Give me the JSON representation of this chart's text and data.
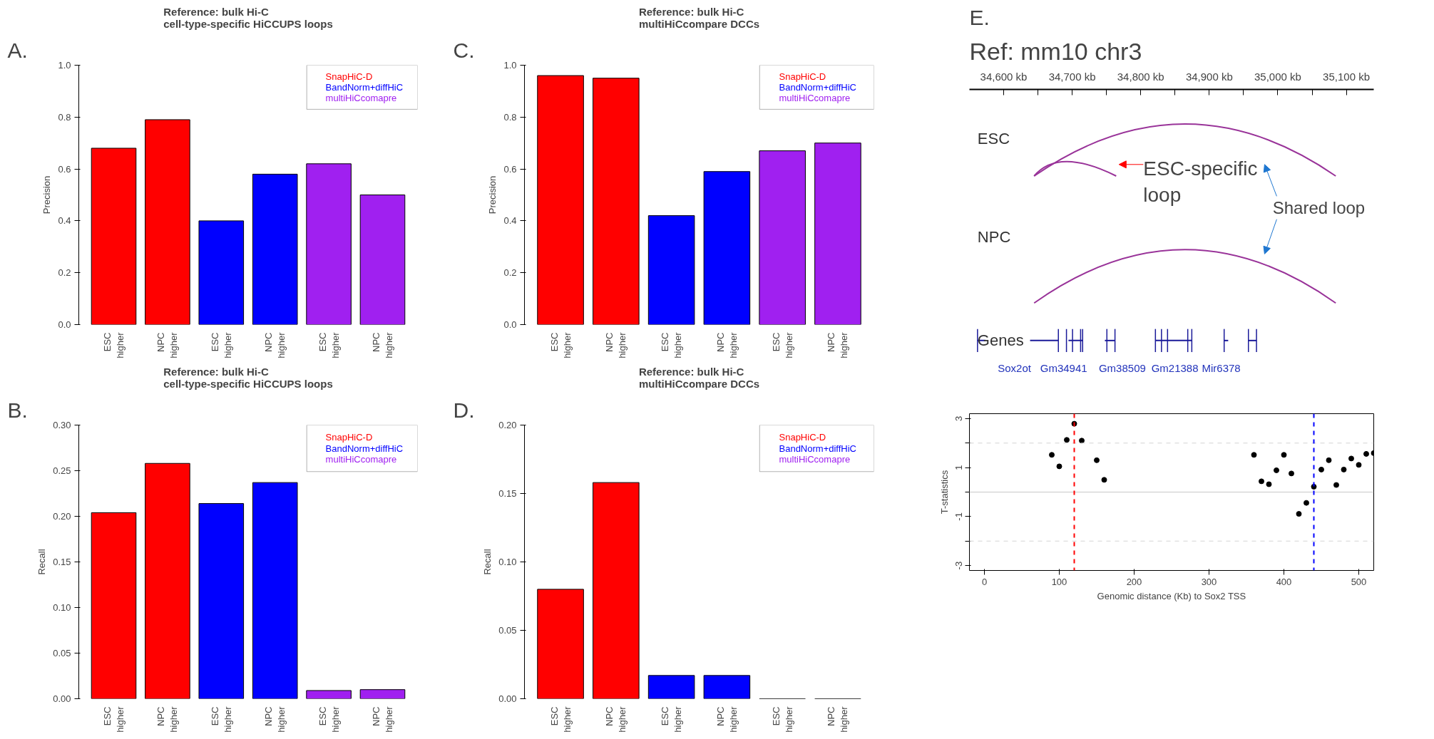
{
  "chart_data": [
    {
      "type": "bar",
      "title": "Reference: bulk Hi-C\ncell-type-specific HiCCUPS loops",
      "ylabel": "Precision",
      "annotations": [
        "A."
      ],
      "categories": [
        "ESC\nhigher",
        "NPC\nhigher",
        "ESC\nhigher",
        "NPC\nhigher",
        "ESC\nhigher",
        "NPC\nhigher"
      ],
      "series": [
        {
          "name": "SnapHiC-D",
          "color": "#ff0000",
          "values": [
            0.68,
            0.79,
            null,
            null,
            null,
            null
          ]
        },
        {
          "name": "BandNorm+diffHiC",
          "color": "#0000ff",
          "values": [
            null,
            null,
            0.4,
            0.58,
            null,
            null
          ]
        },
        {
          "name": "multiHiCcomapre",
          "color": "#a020f0",
          "values": [
            null,
            null,
            null,
            null,
            0.62,
            0.5
          ]
        }
      ],
      "ylim": [
        0,
        1.0
      ],
      "yticks": [
        {
          "value": 0,
          "label": "0.0"
        },
        0.2,
        0.4,
        0.6,
        0.8,
        {
          "value": 1,
          "label": "1.0"
        }
      ],
      "legend": "top right"
    },
    {
      "type": "bar",
      "title": "Reference: bulk Hi-C\ncell-type-specific HiCCUPS loops",
      "ylabel": "Recall",
      "annotations": [
        "B."
      ],
      "categories": [
        "ESC\nhigher",
        "NPC\nhigher",
        "ESC\nhigher",
        "NPC\nhigher",
        "ESC\nhigher",
        "NPC\nhigher"
      ],
      "series": [
        {
          "name": "SnapHiC-D",
          "color": "#ff0000",
          "values": [
            0.204,
            0.258,
            null,
            null,
            null,
            null
          ]
        },
        {
          "name": "BandNorm+diffHiC",
          "color": "#0000ff",
          "values": [
            null,
            null,
            0.214,
            0.237,
            null,
            null
          ]
        },
        {
          "name": "multiHiCcomapre",
          "color": "#a020f0",
          "values": [
            null,
            null,
            null,
            null,
            0.009,
            0.01
          ]
        }
      ],
      "ylim": [
        0,
        0.3
      ],
      "yticks": [
        {
          "value": 0.0,
          "label": "0.00"
        },
        {
          "value": 0.05,
          "label": "0.05"
        },
        {
          "value": 0.1,
          "label": "0.10"
        },
        {
          "value": 0.15,
          "label": "0.15"
        },
        {
          "value": 0.2,
          "label": "0.20"
        },
        {
          "value": 0.25,
          "label": "0.25"
        },
        {
          "value": 0.3,
          "label": "0.30"
        }
      ],
      "legend": "top right"
    },
    {
      "type": "bar",
      "title": "Reference: bulk Hi-C\nmultiHiCcompare DCCs",
      "ylabel": "Precision",
      "annotations": [
        "C."
      ],
      "categories": [
        "ESC\nhigher",
        "NPC\nhigher",
        "ESC\nhigher",
        "NPC\nhigher",
        "ESC\nhigher",
        "NPC\nhigher"
      ],
      "series": [
        {
          "name": "SnapHiC-D",
          "color": "#ff0000",
          "values": [
            0.96,
            0.95,
            null,
            null,
            null,
            null
          ]
        },
        {
          "name": "BandNorm+diffHiC",
          "color": "#0000ff",
          "values": [
            null,
            null,
            0.42,
            0.59,
            null,
            null
          ]
        },
        {
          "name": "multiHiCcomapre",
          "color": "#a020f0",
          "values": [
            null,
            null,
            null,
            null,
            0.67,
            0.7
          ]
        }
      ],
      "ylim": [
        0,
        1.0
      ],
      "yticks": [
        {
          "value": 0,
          "label": "0.0"
        },
        0.2,
        0.4,
        0.6,
        0.8,
        {
          "value": 1,
          "label": "1.0"
        }
      ],
      "legend": "top right"
    },
    {
      "type": "bar",
      "title": "Reference: bulk Hi-C\nmultiHiCcompare DCCs",
      "ylabel": "Recall",
      "annotations": [
        "D."
      ],
      "categories": [
        "ESC\nhigher",
        "NPC\nhigher",
        "ESC\nhigher",
        "NPC\nhigher",
        "ESC\nhigher",
        "NPC\nhigher"
      ],
      "series": [
        {
          "name": "SnapHiC-D",
          "color": "#ff0000",
          "values": [
            0.08,
            0.158,
            null,
            null,
            null,
            null
          ]
        },
        {
          "name": "BandNorm+diffHiC",
          "color": "#0000ff",
          "values": [
            null,
            null,
            0.017,
            0.017,
            null,
            null
          ]
        },
        {
          "name": "multiHiCcomapre",
          "color": "#a020f0",
          "values": [
            null,
            null,
            null,
            null,
            0,
            0
          ]
        }
      ],
      "ylim": [
        0,
        0.2
      ],
      "yticks": [
        {
          "value": 0.0,
          "label": "0.00"
        },
        {
          "value": 0.05,
          "label": "0.05"
        },
        {
          "value": 0.1,
          "label": "0.10"
        },
        {
          "value": 0.15,
          "label": "0.15"
        },
        {
          "value": 0.2,
          "label": "0.20"
        }
      ],
      "legend": "top right"
    },
    {
      "type": "other",
      "title": "Ref: mm10 chr3",
      "annotations": [
        "E.",
        "ESC",
        "NPC",
        "Genes",
        "Sox2ot",
        "Gm34941",
        "Gm38509",
        "Gm21388",
        "Mir6378",
        "ESC-specific\nloop",
        "Shared loop",
        "34,600 kb",
        "34,700 kb",
        "34,800 kb",
        "34,900 kb",
        "35,000 kb",
        "35,100 kb"
      ]
    },
    {
      "type": "scatter",
      "xlabel": "Genomic distance (Kb) to Sox2 TSS",
      "ylabel": "T-statistics",
      "marker": "circle",
      "x": [
        90,
        100,
        110,
        120,
        130,
        150,
        160,
        360,
        370,
        380,
        390,
        400,
        410,
        420,
        430,
        440,
        450,
        460,
        470,
        480,
        490,
        500,
        510,
        520
      ],
      "series": [
        {
          "color": "#000000",
          "values": [
            1.52,
            1.05,
            2.13,
            2.79,
            2.1,
            1.3,
            0.5,
            1.52,
            0.44,
            0.32,
            0.89,
            1.52,
            0.76,
            -0.89,
            -0.44,
            0.22,
            0.92,
            1.3,
            0.29,
            0.92,
            1.37,
            1.11,
            1.56,
            1.59
          ]
        }
      ],
      "xlim": [
        -20,
        520
      ],
      "xticks": [
        0,
        100,
        200,
        300,
        400,
        500
      ],
      "ylim": [
        -3.2,
        3.2
      ],
      "yticks": [
        -3,
        {
          "value": -2,
          "label": null
        },
        -1,
        {
          "value": 0,
          "label": null
        },
        1,
        {
          "value": 2,
          "label": null
        },
        3
      ],
      "ref_lines": [
        {
          "axis": "y",
          "value": 2,
          "color": "#d3d3d3",
          "line_style": "dashed"
        },
        {
          "axis": "y",
          "value": -2,
          "color": "#d3d3d3",
          "line_style": "dashed"
        },
        {
          "axis": "y",
          "value": 0,
          "color": "#c8c8c8",
          "line_style": "solid"
        },
        {
          "axis": "x",
          "value": 120,
          "color": "#ff0000",
          "line_style": "dashed"
        },
        {
          "axis": "x",
          "value": 440,
          "color": "#0000ff",
          "line_style": "dashed"
        }
      ]
    }
  ]
}
